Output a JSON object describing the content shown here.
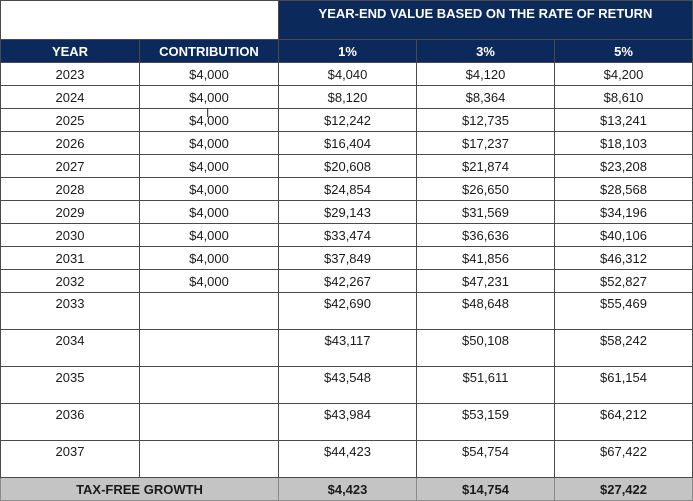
{
  "header": {
    "band_title": "YEAR-END VALUE BASED ON THE RATE OF RETURN",
    "columns": {
      "year": "YEAR",
      "contribution": "CONTRIBUTION",
      "rate1": "1%",
      "rate3": "3%",
      "rate5": "5%"
    }
  },
  "rows": [
    {
      "year": "2023",
      "contribution": "$4,000",
      "r1": "$4,040",
      "r3": "$4,120",
      "r5": "$4,200"
    },
    {
      "year": "2024",
      "contribution": "$4,000",
      "r1": "$8,120",
      "r3": "$8,364",
      "r5": "$8,610"
    },
    {
      "year": "2025",
      "contribution": "$4,000",
      "r1": "$12,242",
      "r3": "$12,735",
      "r5": "$13,241"
    },
    {
      "year": "2026",
      "contribution": "$4,000",
      "r1": "$16,404",
      "r3": "$17,237",
      "r5": "$18,103"
    },
    {
      "year": "2027",
      "contribution": "$4,000",
      "r1": "$20,608",
      "r3": "$21,874",
      "r5": "$23,208"
    },
    {
      "year": "2028",
      "contribution": "$4,000",
      "r1": "$24,854",
      "r3": "$26,650",
      "r5": "$28,568"
    },
    {
      "year": "2029",
      "contribution": "$4,000",
      "r1": "$29,143",
      "r3": "$31,569",
      "r5": "$34,196"
    },
    {
      "year": "2030",
      "contribution": "$4,000",
      "r1": "$33,474",
      "r3": "$36,636",
      "r5": "$40,106"
    },
    {
      "year": "2031",
      "contribution": "$4,000",
      "r1": "$37,849",
      "r3": "$41,856",
      "r5": "$46,312"
    },
    {
      "year": "2032",
      "contribution": "$4,000",
      "r1": "$42,267",
      "r3": "$47,231",
      "r5": "$52,827"
    },
    {
      "year": "2033",
      "contribution": "",
      "r1": "$42,690",
      "r3": "$48,648",
      "r5": "$55,469"
    },
    {
      "year": "2034",
      "contribution": "",
      "r1": "$43,117",
      "r3": "$50,108",
      "r5": "$58,242"
    },
    {
      "year": "2035",
      "contribution": "",
      "r1": "$43,548",
      "r3": "$51,611",
      "r5": "$61,154"
    },
    {
      "year": "2036",
      "contribution": "",
      "r1": "$43,984",
      "r3": "$53,159",
      "r5": "$64,212"
    },
    {
      "year": "2037",
      "contribution": "",
      "r1": "$44,423",
      "r3": "$54,754",
      "r5": "$67,422"
    }
  ],
  "total": {
    "label": "TAX-FREE GROWTH",
    "r1": "$4,423",
    "r3": "$14,754",
    "r5": "$27,422"
  },
  "colors": {
    "header_navy": "#0b2a5b",
    "total_gray": "#c4c4c4"
  },
  "icons": {
    "text_cursor": "text-cursor-icon"
  }
}
